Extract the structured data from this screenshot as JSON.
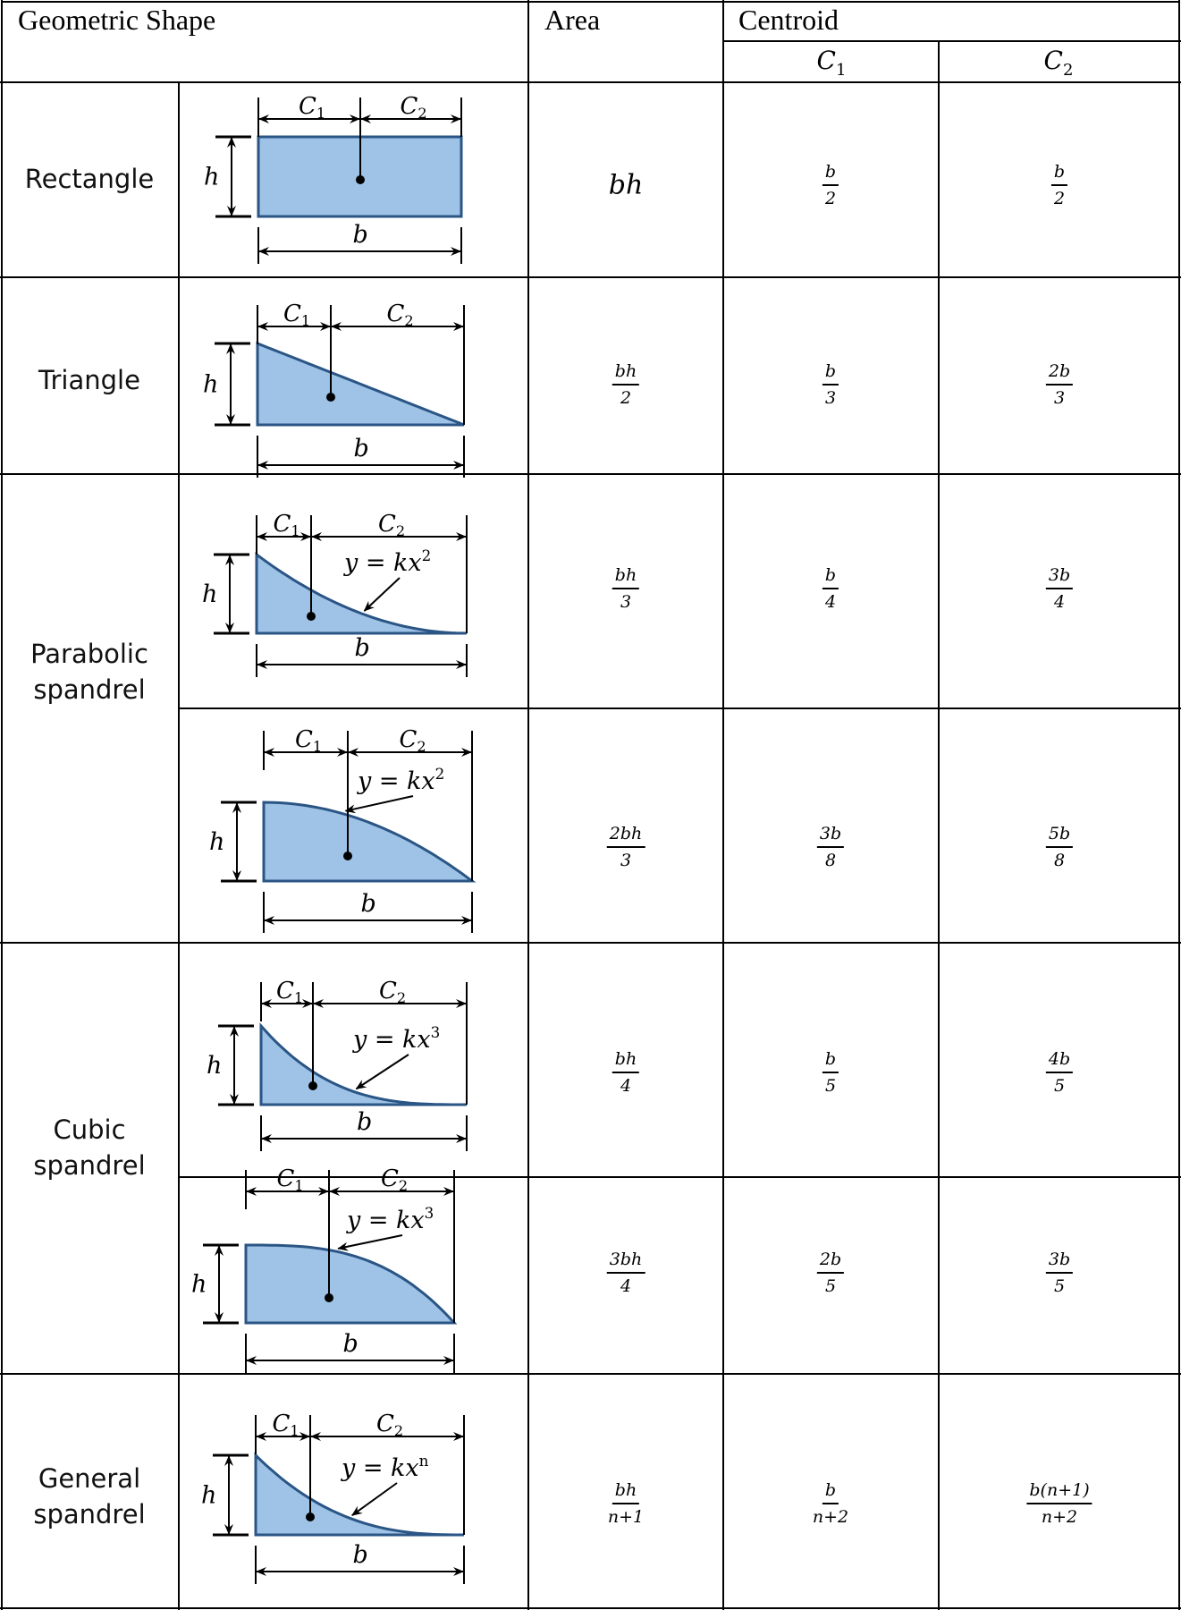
{
  "header": {
    "geometric_shape": "Geometric Shape",
    "area": "Area",
    "centroid": "Centroid",
    "c1": {
      "base": "C",
      "sub": "1"
    },
    "c2": {
      "base": "C",
      "sub": "2"
    }
  },
  "shape_labels": [
    {
      "lines": [
        "Rectangle"
      ]
    },
    {
      "lines": [
        "Triangle"
      ]
    },
    {
      "lines": [
        "Parabolic",
        "spandrel"
      ]
    },
    {
      "lines": [
        "Cubic",
        "spandrel"
      ]
    },
    {
      "lines": [
        "General",
        "spandrel"
      ]
    }
  ],
  "diagram_labels": {
    "c1": "C",
    "c1_sub": "1",
    "c2": "C",
    "c2_sub": "2",
    "h": "h",
    "b": "b"
  },
  "rows": [
    {
      "shape": "rectangle",
      "equation": null,
      "area": {
        "plain": "bh"
      },
      "c1": {
        "num": "b",
        "den": "2"
      },
      "c2": {
        "num": "b",
        "den": "2"
      }
    },
    {
      "shape": "triangle",
      "equation": null,
      "area": {
        "num": "bh",
        "den": "2"
      },
      "c1": {
        "num": "b",
        "den": "3"
      },
      "c2": {
        "num": "2b",
        "den": "3"
      }
    },
    {
      "shape": "parabolic-spandrel",
      "equation": {
        "base": "y = kx",
        "exp": "2"
      },
      "area": {
        "num": "bh",
        "den": "3"
      },
      "c1": {
        "num": "b",
        "den": "4"
      },
      "c2": {
        "num": "3b",
        "den": "4"
      }
    },
    {
      "shape": "parabolic-complement",
      "equation": {
        "base": "y = kx",
        "exp": "2"
      },
      "area": {
        "num": "2bh",
        "den": "3"
      },
      "c1": {
        "num": "3b",
        "den": "8"
      },
      "c2": {
        "num": "5b",
        "den": "8"
      }
    },
    {
      "shape": "cubic-spandrel",
      "equation": {
        "base": "y = kx",
        "exp": "3"
      },
      "area": {
        "num": "bh",
        "den": "4"
      },
      "c1": {
        "num": "b",
        "den": "5"
      },
      "c2": {
        "num": "4b",
        "den": "5"
      }
    },
    {
      "shape": "cubic-complement",
      "equation": {
        "base": "y = kx",
        "exp": "3"
      },
      "area": {
        "num": "3bh",
        "den": "4"
      },
      "c1": {
        "num": "2b",
        "den": "5"
      },
      "c2": {
        "num": "3b",
        "den": "5"
      }
    },
    {
      "shape": "general-spandrel",
      "equation": {
        "base": "y = kx",
        "exp": "n"
      },
      "area": {
        "num": "bh",
        "den": "n+1"
      },
      "c1": {
        "num": "b",
        "den": "n+2"
      },
      "c2": {
        "num": "b(n+1)",
        "den": "n+2"
      }
    }
  ],
  "colors": {
    "fill": "#9fc3e6",
    "outline": "#2a5585",
    "lines": "#000000"
  }
}
